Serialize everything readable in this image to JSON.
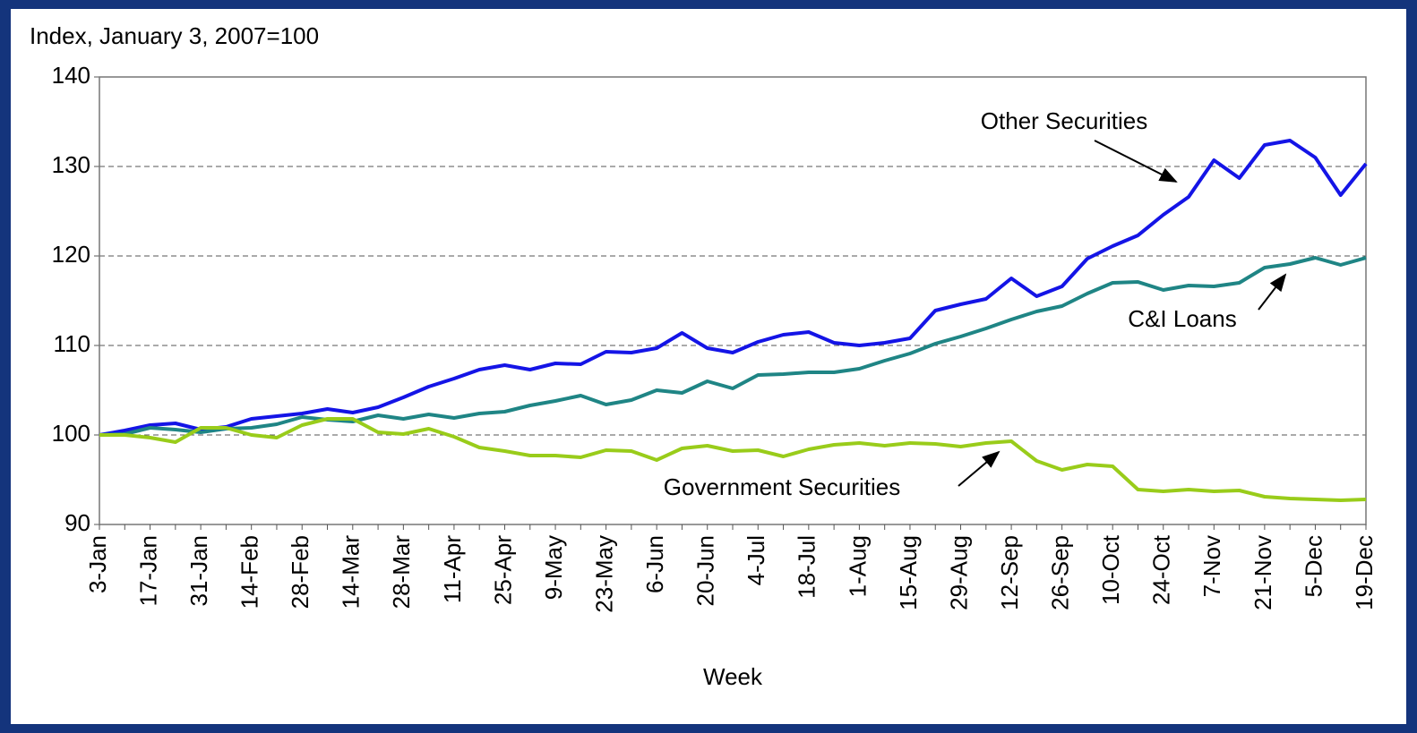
{
  "chart_data": {
    "type": "line",
    "y_axis_label": "Index, January 3, 2007=100",
    "x_axis_label": "Week",
    "categories": [
      "3-Jan",
      null,
      "17-Jan",
      null,
      "31-Jan",
      null,
      "14-Feb",
      null,
      "28-Feb",
      null,
      "14-Mar",
      null,
      "28-Mar",
      null,
      "11-Apr",
      null,
      "25-Apr",
      null,
      "9-May",
      null,
      "23-May",
      null,
      "6-Jun",
      null,
      "20-Jun",
      null,
      "4-Jul",
      null,
      "18-Jul",
      null,
      "1-Aug",
      null,
      "15-Aug",
      null,
      "29-Aug",
      null,
      "12-Sep",
      null,
      "26-Sep",
      null,
      "10-Oct",
      null,
      "24-Oct",
      null,
      "7-Nov",
      null,
      "21-Nov",
      null,
      "5-Dec",
      null,
      "19-Dec"
    ],
    "series": [
      {
        "name": "Other Securities",
        "color": "#1414e6",
        "values": [
          100,
          100.5,
          101.1,
          101.3,
          100.6,
          100.9,
          101.8,
          102.1,
          102.4,
          102.9,
          102.5,
          103.1,
          104.2,
          105.4,
          106.3,
          107.3,
          107.8,
          107.3,
          108.0,
          107.9,
          109.3,
          109.2,
          109.7,
          111.4,
          109.7,
          109.2,
          110.4,
          111.2,
          111.5,
          110.3,
          110.0,
          110.3,
          110.8,
          113.9,
          114.6,
          115.2,
          117.5,
          115.5,
          116.6,
          119.7,
          121.1,
          122.3,
          124.6,
          126.6,
          130.7,
          128.7,
          132.4,
          132.9,
          131.0,
          126.8,
          130.3
        ]
      },
      {
        "name": "C&I Loans",
        "color": "#1f8585",
        "values": [
          100,
          100.1,
          100.8,
          100.6,
          100.3,
          100.7,
          100.8,
          101.2,
          102.0,
          101.7,
          101.5,
          102.2,
          101.8,
          102.3,
          101.9,
          102.4,
          102.6,
          103.3,
          103.8,
          104.4,
          103.4,
          103.9,
          105.0,
          104.7,
          106.0,
          105.2,
          106.7,
          106.8,
          107.0,
          107.0,
          107.4,
          108.3,
          109.1,
          110.2,
          111.0,
          111.9,
          112.9,
          113.8,
          114.4,
          115.8,
          117.0,
          117.1,
          116.2,
          116.7,
          116.6,
          117.0,
          118.7,
          119.1,
          119.8,
          119.0,
          119.8
        ]
      },
      {
        "name": "Government Securities",
        "color": "#99cc1a",
        "values": [
          100,
          100,
          99.7,
          99.2,
          100.8,
          100.8,
          100.0,
          99.7,
          101.1,
          101.8,
          101.8,
          100.3,
          100.1,
          100.7,
          99.8,
          98.6,
          98.2,
          97.7,
          97.7,
          97.5,
          98.3,
          98.2,
          97.2,
          98.5,
          98.8,
          98.2,
          98.3,
          97.6,
          98.4,
          98.9,
          99.1,
          98.8,
          99.1,
          99.0,
          98.7,
          99.1,
          99.3,
          97.1,
          96.1,
          96.7,
          96.5,
          93.9,
          93.7,
          93.9,
          93.7,
          93.8,
          93.1,
          92.9,
          92.8,
          92.7,
          92.8
        ]
      }
    ],
    "ylim": [
      90,
      140
    ],
    "yticks": [
      90,
      100,
      110,
      120,
      130,
      140
    ],
    "grid": true
  }
}
